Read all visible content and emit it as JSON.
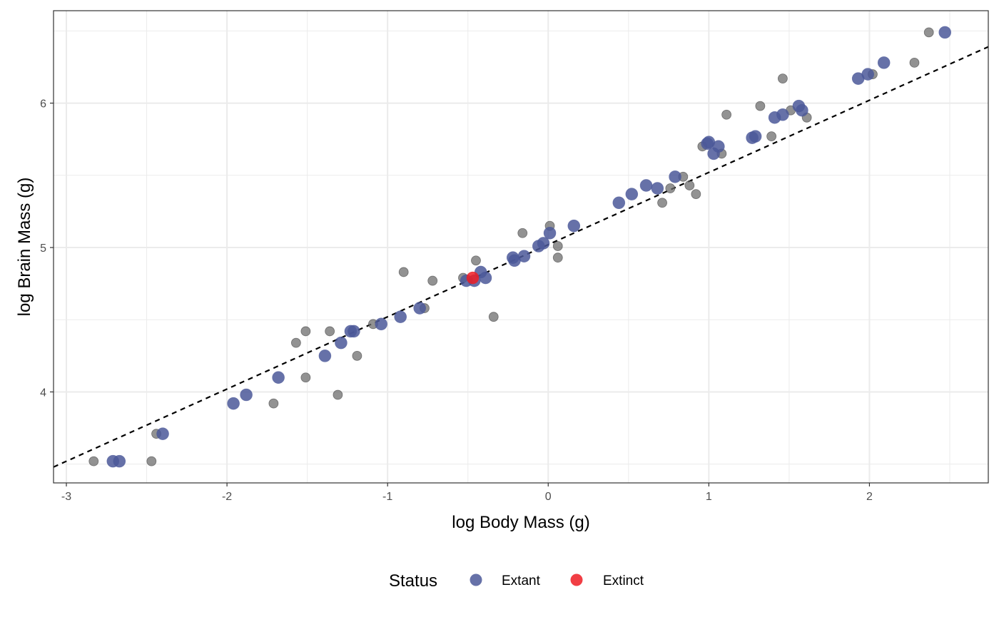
{
  "chart_data": {
    "type": "scatter",
    "xlabel": "log Body Mass (g)",
    "ylabel": "log Brain Mass (g)",
    "xlim": [
      -3.08,
      2.74
    ],
    "ylim": [
      3.37,
      6.64
    ],
    "x_ticks": [
      -3,
      -2,
      -1,
      0,
      1,
      2
    ],
    "x_tick_labels": [
      "-3",
      "-2",
      "-1",
      "0",
      "1",
      "2"
    ],
    "y_ticks": [
      4,
      5,
      6
    ],
    "y_tick_labels": [
      "4",
      "5",
      "6"
    ],
    "grid": true,
    "legend": {
      "title": "Status",
      "position": "bottom",
      "entries": [
        {
          "label": "Extant",
          "color": "#4b5899"
        },
        {
          "label": "Extinct",
          "color": "#ee1c23"
        }
      ]
    },
    "reference_line": {
      "style": "dashed",
      "color": "#000000",
      "slope": 0.5,
      "intercept": 5.02
    },
    "series": [
      {
        "status": "background",
        "color": "#6e6e6e",
        "points": [
          {
            "x": -2.83,
            "y": 3.52
          },
          {
            "x": -2.44,
            "y": 3.71
          },
          {
            "x": -2.47,
            "y": 3.52
          },
          {
            "x": -1.71,
            "y": 3.92
          },
          {
            "x": -1.57,
            "y": 4.34
          },
          {
            "x": -1.51,
            "y": 4.42
          },
          {
            "x": -1.51,
            "y": 4.1
          },
          {
            "x": -1.36,
            "y": 4.42
          },
          {
            "x": -1.31,
            "y": 3.98
          },
          {
            "x": -1.19,
            "y": 4.25
          },
          {
            "x": -1.09,
            "y": 4.47
          },
          {
            "x": -0.9,
            "y": 4.83
          },
          {
            "x": -0.77,
            "y": 4.58
          },
          {
            "x": -0.72,
            "y": 4.77
          },
          {
            "x": -0.53,
            "y": 4.79
          },
          {
            "x": -0.45,
            "y": 4.91
          },
          {
            "x": -0.34,
            "y": 4.52
          },
          {
            "x": -0.16,
            "y": 5.1
          },
          {
            "x": 0.01,
            "y": 5.15
          },
          {
            "x": 0.06,
            "y": 5.01
          },
          {
            "x": 0.06,
            "y": 4.93
          },
          {
            "x": 0.71,
            "y": 5.31
          },
          {
            "x": 0.76,
            "y": 5.41
          },
          {
            "x": 0.84,
            "y": 5.49
          },
          {
            "x": 0.88,
            "y": 5.43
          },
          {
            "x": 0.92,
            "y": 5.37
          },
          {
            "x": 0.96,
            "y": 5.7
          },
          {
            "x": 1.08,
            "y": 5.65
          },
          {
            "x": 1.11,
            "y": 5.92
          },
          {
            "x": 1.32,
            "y": 5.98
          },
          {
            "x": 1.39,
            "y": 5.77
          },
          {
            "x": 1.46,
            "y": 6.17
          },
          {
            "x": 1.51,
            "y": 5.95
          },
          {
            "x": 1.61,
            "y": 5.9
          },
          {
            "x": 2.02,
            "y": 6.2
          },
          {
            "x": 2.28,
            "y": 6.28
          },
          {
            "x": 2.37,
            "y": 6.49
          }
        ]
      },
      {
        "status": "Extant",
        "color": "#4b5899",
        "points": [
          {
            "x": -2.71,
            "y": 3.52
          },
          {
            "x": -2.67,
            "y": 3.52
          },
          {
            "x": -2.4,
            "y": 3.71
          },
          {
            "x": -1.96,
            "y": 3.92
          },
          {
            "x": -1.88,
            "y": 3.98
          },
          {
            "x": -1.68,
            "y": 4.1
          },
          {
            "x": -1.39,
            "y": 4.25
          },
          {
            "x": -1.29,
            "y": 4.34
          },
          {
            "x": -1.23,
            "y": 4.42
          },
          {
            "x": -1.21,
            "y": 4.42
          },
          {
            "x": -1.04,
            "y": 4.47
          },
          {
            "x": -0.92,
            "y": 4.52
          },
          {
            "x": -0.8,
            "y": 4.58
          },
          {
            "x": -0.51,
            "y": 4.77
          },
          {
            "x": -0.46,
            "y": 4.77
          },
          {
            "x": -0.42,
            "y": 4.83
          },
          {
            "x": -0.39,
            "y": 4.79
          },
          {
            "x": -0.22,
            "y": 4.93
          },
          {
            "x": -0.21,
            "y": 4.91
          },
          {
            "x": -0.15,
            "y": 4.94
          },
          {
            "x": -0.06,
            "y": 5.01
          },
          {
            "x": -0.03,
            "y": 5.03
          },
          {
            "x": 0.01,
            "y": 5.1
          },
          {
            "x": 0.16,
            "y": 5.15
          },
          {
            "x": 0.44,
            "y": 5.31
          },
          {
            "x": 0.52,
            "y": 5.37
          },
          {
            "x": 0.61,
            "y": 5.43
          },
          {
            "x": 0.68,
            "y": 5.41
          },
          {
            "x": 0.79,
            "y": 5.49
          },
          {
            "x": 0.99,
            "y": 5.72
          },
          {
            "x": 1.0,
            "y": 5.73
          },
          {
            "x": 1.03,
            "y": 5.65
          },
          {
            "x": 1.06,
            "y": 5.7
          },
          {
            "x": 1.27,
            "y": 5.76
          },
          {
            "x": 1.29,
            "y": 5.77
          },
          {
            "x": 1.41,
            "y": 5.9
          },
          {
            "x": 1.46,
            "y": 5.92
          },
          {
            "x": 1.56,
            "y": 5.98
          },
          {
            "x": 1.58,
            "y": 5.95
          },
          {
            "x": 1.93,
            "y": 6.17
          },
          {
            "x": 1.99,
            "y": 6.2
          },
          {
            "x": 2.09,
            "y": 6.28
          },
          {
            "x": 2.47,
            "y": 6.49
          }
        ]
      },
      {
        "status": "Extinct",
        "color": "#ee1c23",
        "points": [
          {
            "x": -0.47,
            "y": 4.79
          }
        ]
      }
    ]
  }
}
